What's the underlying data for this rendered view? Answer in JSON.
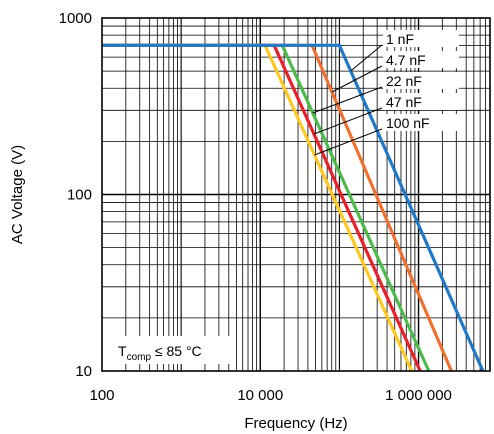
{
  "chart_data": {
    "type": "line",
    "xlabel": "Frequency (Hz)",
    "ylabel": "AC Voltage (V)",
    "x_scale": "log",
    "y_scale": "log",
    "xlim": [
      100,
      8000000
    ],
    "ylim": [
      10,
      1000
    ],
    "x_ticks": [
      {
        "value": 100,
        "label": "100"
      },
      {
        "value": 10000,
        "label": "10 000"
      },
      {
        "value": 1000000,
        "label": "1 000 000"
      }
    ],
    "y_ticks": [
      {
        "value": 10,
        "label": "10"
      },
      {
        "value": 100,
        "label": "100"
      },
      {
        "value": 1000,
        "label": "1000"
      }
    ],
    "grid": true,
    "annotation": {
      "t": "T",
      "sub": "comp",
      "rest": " ≤ 85 °C"
    },
    "series": [
      {
        "name": "1 nF",
        "color": "#1f78c8",
        "points": [
          [
            100,
            700
          ],
          [
            100000,
            700
          ],
          [
            6500000,
            10
          ]
        ]
      },
      {
        "name": "4.7 nF",
        "color": "#f07030",
        "points": [
          [
            100,
            700
          ],
          [
            45000,
            700
          ],
          [
            2600000,
            10
          ]
        ]
      },
      {
        "name": "22 nF",
        "color": "#4cbb4c",
        "points": [
          [
            100,
            700
          ],
          [
            19000,
            700
          ],
          [
            1350000,
            10
          ]
        ]
      },
      {
        "name": "47 nF",
        "color": "#e8202a",
        "points": [
          [
            100,
            700
          ],
          [
            15000,
            700
          ],
          [
            1050000,
            10
          ]
        ]
      },
      {
        "name": "100 nF",
        "color": "#ffc820",
        "points": [
          [
            100,
            700
          ],
          [
            11500,
            700
          ],
          [
            820000,
            10
          ]
        ]
      }
    ],
    "legend_labels": [
      "1 nF",
      "4.7 nF",
      "22 nF",
      "47 nF",
      "100 nF"
    ]
  }
}
